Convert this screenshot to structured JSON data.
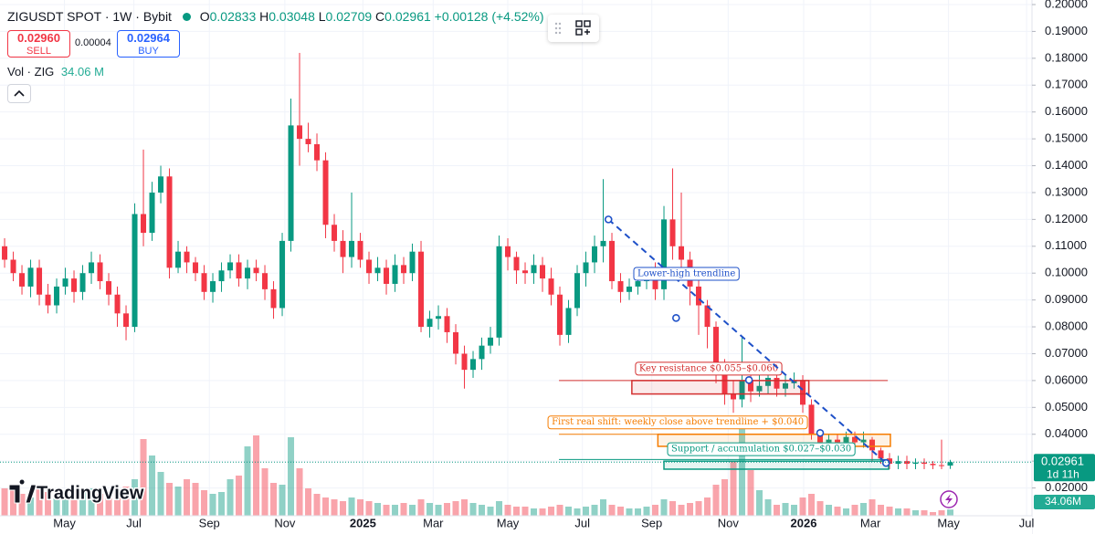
{
  "chart_data": {
    "type": "candlestick",
    "header": {
      "symbol": "ZIGUSDT SPOT · 1W · Bybit",
      "o": "O",
      "h": "H",
      "l": "L",
      "c": "C",
      "change": "+0.00128 (+4.52%)"
    },
    "trade": {
      "sell_price": "0.02960",
      "sell": "SELL",
      "spread": "0.00004",
      "buy_price": "0.02964",
      "buy": "BUY"
    },
    "volume_legend": {
      "label": "Vol · ZIG",
      "value": "34.06 M"
    },
    "price_tag": {
      "countdown": "1d 11h"
    },
    "volume_tag": "34.06M",
    "logo": "TradingView",
    "open": [
      0.11,
      0.105,
      0.1,
      0.095,
      0.102,
      0.092,
      0.088,
      0.095,
      0.098,
      0.093,
      0.1,
      0.104,
      0.097,
      0.092,
      0.085,
      0.08,
      0.122,
      0.115,
      0.13,
      0.136,
      0.102,
      0.108,
      0.104,
      0.1,
      0.093,
      0.097,
      0.101,
      0.104,
      0.098,
      0.102,
      0.1,
      0.094,
      0.087,
      0.112,
      0.155,
      0.15,
      0.148,
      0.142,
      0.118,
      0.112,
      0.106,
      0.112,
      0.105,
      0.1,
      0.102,
      0.096,
      0.103,
      0.1,
      0.108,
      0.08,
      0.083,
      0.084,
      0.078,
      0.07,
      0.064,
      0.068,
      0.073,
      0.076,
      0.11,
      0.106,
      0.101,
      0.1,
      0.103,
      0.098,
      0.092,
      0.077,
      0.087,
      0.1,
      0.104,
      0.11,
      0.112,
      0.097,
      0.093,
      0.095,
      0.097,
      0.1,
      0.094,
      0.12,
      0.11,
      0.105,
      0.095,
      0.088,
      0.08,
      0.065,
      0.055,
      0.053,
      0.06,
      0.056,
      0.058,
      0.061,
      0.057,
      0.059,
      0.06,
      0.051,
      0.04,
      0.037,
      0.038,
      0.037,
      0.039,
      0.037,
      0.038,
      0.034,
      0.031,
      0.029,
      0.03,
      0.029,
      0.0295,
      0.029,
      0.0285,
      0.02833
    ],
    "high": [
      0.113,
      0.108,
      0.103,
      0.105,
      0.105,
      0.096,
      0.098,
      0.102,
      0.101,
      0.103,
      0.108,
      0.107,
      0.1,
      0.095,
      0.088,
      0.126,
      0.146,
      0.134,
      0.14,
      0.139,
      0.112,
      0.11,
      0.106,
      0.103,
      0.1,
      0.104,
      0.107,
      0.107,
      0.105,
      0.105,
      0.103,
      0.097,
      0.115,
      0.165,
      0.182,
      0.156,
      0.152,
      0.145,
      0.122,
      0.116,
      0.13,
      0.115,
      0.108,
      0.106,
      0.105,
      0.107,
      0.106,
      0.111,
      0.112,
      0.086,
      0.088,
      0.087,
      0.081,
      0.073,
      0.071,
      0.076,
      0.08,
      0.114,
      0.113,
      0.108,
      0.104,
      0.107,
      0.106,
      0.102,
      0.095,
      0.09,
      0.103,
      0.108,
      0.114,
      0.135,
      0.115,
      0.1,
      0.098,
      0.1,
      0.102,
      0.104,
      0.125,
      0.139,
      0.13,
      0.108,
      0.098,
      0.09,
      0.082,
      0.068,
      0.06,
      0.076,
      0.065,
      0.063,
      0.066,
      0.064,
      0.062,
      0.063,
      0.062,
      0.053,
      0.042,
      0.04,
      0.04,
      0.041,
      0.041,
      0.041,
      0.039,
      0.035,
      0.033,
      0.032,
      0.032,
      0.031,
      0.031,
      0.03,
      0.038,
      0.03048
    ],
    "low": [
      0.102,
      0.097,
      0.092,
      0.091,
      0.088,
      0.085,
      0.085,
      0.092,
      0.089,
      0.09,
      0.096,
      0.094,
      0.088,
      0.08,
      0.075,
      0.078,
      0.11,
      0.112,
      0.126,
      0.098,
      0.1,
      0.1,
      0.097,
      0.09,
      0.089,
      0.093,
      0.098,
      0.095,
      0.094,
      0.097,
      0.09,
      0.083,
      0.084,
      0.108,
      0.14,
      0.145,
      0.138,
      0.113,
      0.108,
      0.1,
      0.102,
      0.102,
      0.096,
      0.097,
      0.092,
      0.093,
      0.096,
      0.097,
      0.078,
      0.076,
      0.079,
      0.074,
      0.066,
      0.057,
      0.061,
      0.064,
      0.07,
      0.073,
      0.101,
      0.096,
      0.096,
      0.096,
      0.093,
      0.088,
      0.073,
      0.074,
      0.084,
      0.095,
      0.1,
      0.104,
      0.094,
      0.089,
      0.09,
      0.092,
      0.094,
      0.09,
      0.09,
      0.105,
      0.098,
      0.088,
      0.077,
      0.072,
      0.059,
      0.051,
      0.048,
      0.05,
      0.052,
      0.054,
      0.055,
      0.054,
      0.054,
      0.057,
      0.048,
      0.038,
      0.035,
      0.035,
      0.035,
      0.036,
      0.035,
      0.035,
      0.03,
      0.029,
      0.027,
      0.027,
      0.027,
      0.027,
      0.027,
      0.027,
      0.027,
      0.02709
    ],
    "close": [
      0.105,
      0.1,
      0.095,
      0.102,
      0.092,
      0.088,
      0.095,
      0.098,
      0.093,
      0.1,
      0.104,
      0.097,
      0.092,
      0.085,
      0.08,
      0.122,
      0.115,
      0.13,
      0.136,
      0.102,
      0.108,
      0.104,
      0.1,
      0.093,
      0.097,
      0.101,
      0.104,
      0.098,
      0.102,
      0.1,
      0.094,
      0.087,
      0.112,
      0.155,
      0.15,
      0.148,
      0.142,
      0.118,
      0.112,
      0.106,
      0.112,
      0.105,
      0.1,
      0.102,
      0.096,
      0.103,
      0.1,
      0.108,
      0.08,
      0.083,
      0.084,
      0.078,
      0.07,
      0.064,
      0.068,
      0.073,
      0.076,
      0.11,
      0.106,
      0.101,
      0.1,
      0.103,
      0.098,
      0.092,
      0.077,
      0.087,
      0.1,
      0.104,
      0.11,
      0.112,
      0.097,
      0.093,
      0.095,
      0.097,
      0.1,
      0.094,
      0.12,
      0.11,
      0.105,
      0.095,
      0.088,
      0.08,
      0.065,
      0.055,
      0.053,
      0.06,
      0.056,
      0.058,
      0.061,
      0.057,
      0.059,
      0.06,
      0.051,
      0.04,
      0.037,
      0.038,
      0.037,
      0.039,
      0.037,
      0.038,
      0.034,
      0.031,
      0.029,
      0.03,
      0.029,
      0.0295,
      0.029,
      0.0285,
      0.02833,
      0.02961
    ],
    "volume": [
      150,
      140,
      120,
      100,
      160,
      130,
      120,
      110,
      140,
      130,
      150,
      120,
      100,
      140,
      160,
      200,
      420,
      330,
      240,
      180,
      160,
      200,
      180,
      140,
      120,
      130,
      200,
      220,
      380,
      440,
      260,
      180,
      170,
      430,
      260,
      150,
      120,
      100,
      90,
      80,
      100,
      90,
      80,
      70,
      60,
      60,
      70,
      60,
      90,
      70,
      60,
      70,
      80,
      90,
      70,
      60,
      50,
      80,
      60,
      50,
      50,
      40,
      40,
      50,
      60,
      50,
      40,
      50,
      60,
      90,
      60,
      50,
      40,
      40,
      50,
      60,
      90,
      80,
      60,
      70,
      80,
      100,
      170,
      200,
      300,
      480,
      250,
      140,
      90,
      60,
      70,
      60,
      100,
      120,
      80,
      60,
      50,
      40,
      60,
      70,
      90,
      60,
      50,
      40,
      40,
      30,
      30,
      20,
      30,
      34.06
    ],
    "vlim": [
      0,
      500
    ],
    "up_color": "#089981",
    "down_color": "#f23645",
    "xlim": [
      -0.53,
      118.42
    ],
    "xticks": [
      {
        "value": 6.9,
        "label": "May"
      },
      {
        "value": 14.9,
        "label": "Jul"
      },
      {
        "value": 23.6,
        "label": "Sep"
      },
      {
        "value": 32.3,
        "label": "Nov"
      },
      {
        "value": 41.3,
        "label": "2025"
      },
      {
        "value": 49.4,
        "label": "Mar"
      },
      {
        "value": 58,
        "label": "May"
      },
      {
        "value": 66.6,
        "label": "Jul"
      },
      {
        "value": 74.6,
        "label": "Sep"
      },
      {
        "value": 83.4,
        "label": "Nov"
      },
      {
        "value": 92.1,
        "label": "2026"
      },
      {
        "value": 99.8,
        "label": "Mar"
      },
      {
        "value": 108.8,
        "label": "May"
      },
      {
        "value": 117.8,
        "label": "Jul"
      }
    ],
    "ylim": [
      0.01,
      0.2
    ],
    "yticks": [
      {
        "value": 0.02,
        "label": "0.02000"
      },
      {
        "value": 0.03,
        "label": "0.03000"
      },
      {
        "value": 0.04,
        "label": "0.04000"
      },
      {
        "value": 0.05,
        "label": "0.05000"
      },
      {
        "value": 0.06,
        "label": "0.06000"
      },
      {
        "value": 0.07,
        "label": "0.07000"
      },
      {
        "value": 0.08,
        "label": "0.08000"
      },
      {
        "value": 0.09,
        "label": "0.09000"
      },
      {
        "value": 0.1,
        "label": "0.10000"
      },
      {
        "value": 0.11,
        "label": "0.11000"
      },
      {
        "value": 0.12,
        "label": "0.12000"
      },
      {
        "value": 0.13,
        "label": "0.13000"
      },
      {
        "value": 0.14,
        "label": "0.14000"
      },
      {
        "value": 0.15,
        "label": "0.15000"
      },
      {
        "value": 0.16,
        "label": "0.16000"
      },
      {
        "value": 0.17,
        "label": "0.17000"
      },
      {
        "value": 0.18,
        "label": "0.18000"
      },
      {
        "value": 0.19,
        "label": "0.19000"
      },
      {
        "value": 0.2,
        "label": "0.20000"
      }
    ],
    "grid": true,
    "trendline": {
      "label": "Lower-high trendline",
      "color": "#1e50c8",
      "points": [
        [
          69.6,
          0.12
        ],
        [
          77.4,
          0.0833
        ],
        [
          85.8,
          0.0602
        ],
        [
          94,
          0.0405
        ],
        [
          101.6,
          0.0293
        ]
      ]
    },
    "zones": [
      {
        "label": "Key resistance $0.055–$0.060",
        "color": "#d32f2f",
        "low": 0.055,
        "high": 0.06,
        "x": [
          72.3,
          92.7
        ],
        "line": 0.06,
        "line_x": [
          63.9,
          101.8
        ]
      },
      {
        "label": "First real shift: weekly close above trendline + $0.040",
        "color": "#f57c00",
        "low": 0.0355,
        "high": 0.04,
        "x": [
          75.3,
          102.1
        ],
        "line": 0.04,
        "line_x": [
          63.9,
          101.8
        ]
      },
      {
        "label": "Support / accumulation $0.027–$0.030",
        "color": "#089981",
        "low": 0.027,
        "high": 0.03,
        "x": [
          76,
          101.9
        ],
        "line": 0.0306,
        "line_x": [
          63.9,
          101.8
        ]
      }
    ]
  }
}
